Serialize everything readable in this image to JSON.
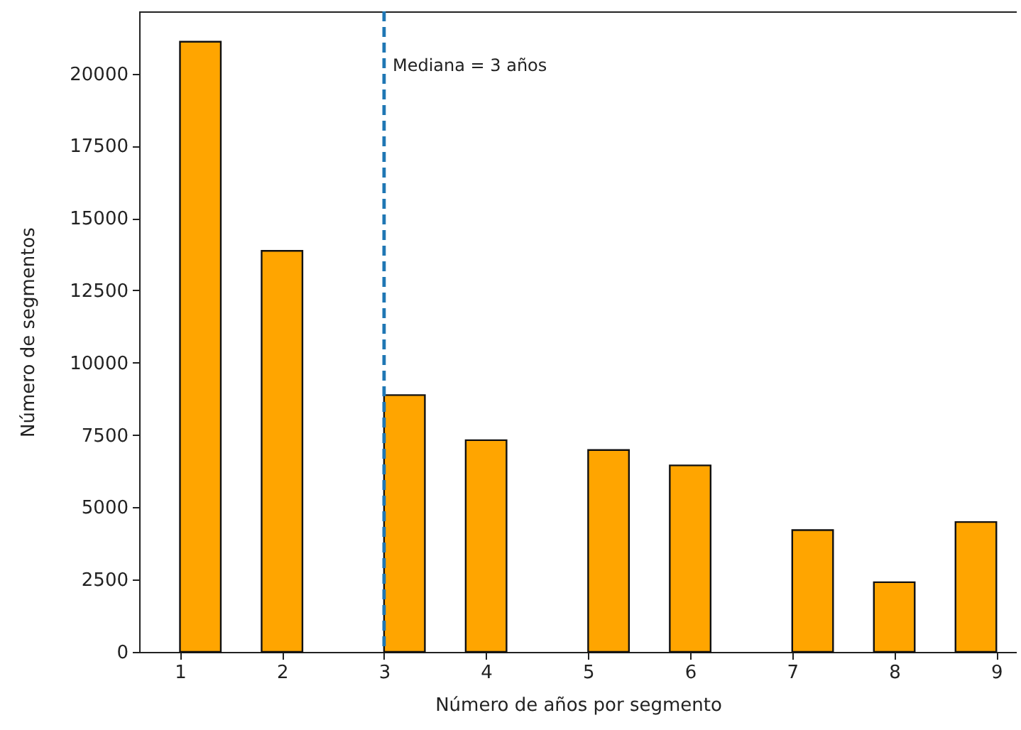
{
  "chart_data": {
    "type": "bar",
    "xlabel": "Número de años por segmento",
    "ylabel": "Número de segmentos",
    "x": [
      1.2,
      2.0,
      3.2,
      4.0,
      5.2,
      6.0,
      7.2,
      8.0,
      8.8
    ],
    "values": [
      21100,
      13870,
      8880,
      7320,
      6980,
      6450,
      4210,
      2410,
      4490
    ],
    "color": "#ffa500",
    "xlim": [
      0.6,
      9.2
    ],
    "xticks": [
      1,
      2,
      3,
      4,
      5,
      6,
      7,
      8,
      9
    ],
    "ylim": [
      0,
      22150
    ],
    "yticks": [
      0,
      2500,
      5000,
      7500,
      10000,
      12500,
      15000,
      17500,
      20000
    ],
    "grid": false,
    "ref_lines": [
      {
        "axis": "x",
        "value": 3,
        "label": "Mediana = 3 años",
        "color": "#1f77b4",
        "line_style": "dashed"
      }
    ]
  }
}
